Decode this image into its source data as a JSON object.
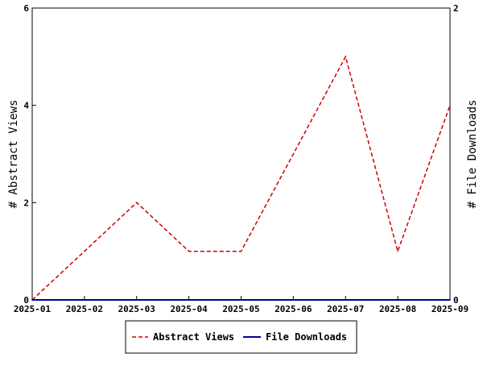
{
  "chart_data": {
    "type": "line",
    "title": "",
    "xlabel": "",
    "ylabel": "# Abstract Views",
    "y2label": "# File Downloads",
    "categories": [
      "2025-01",
      "2025-02",
      "2025-03",
      "2025-04",
      "2025-05",
      "2025-06",
      "2025-07",
      "2025-08",
      "2025-09"
    ],
    "ylim": [
      0,
      6
    ],
    "y2lim": [
      0,
      2
    ],
    "yticks": [
      "0",
      "2",
      "4",
      "6"
    ],
    "y2ticks": [
      "0",
      "2"
    ],
    "grid": false,
    "legend_position": "bottom-center",
    "series": [
      {
        "name": "Abstract Views",
        "axis": "left",
        "style": "dashed",
        "color": "#cc0000",
        "values": [
          0,
          1,
          2,
          1,
          1,
          3,
          5,
          1,
          4
        ]
      },
      {
        "name": "File Downloads",
        "axis": "right",
        "style": "solid",
        "color": "#000099",
        "values": [
          0,
          0,
          0,
          0,
          0,
          0,
          0,
          0,
          0
        ]
      }
    ]
  }
}
